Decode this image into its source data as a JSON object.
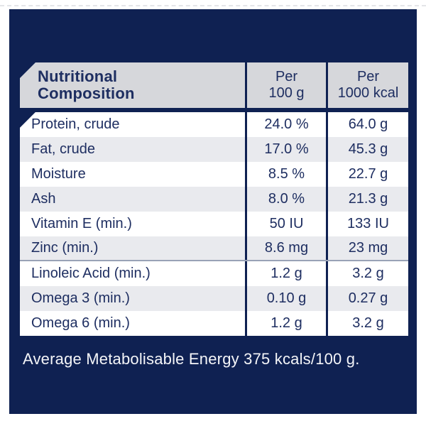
{
  "colors": {
    "page_background": "#ffffff",
    "panel_navy": "#0f2152",
    "header_gray": "#d6d7db",
    "row_stripe_gray": "#e9eaee",
    "text_navy": "#1e2e61",
    "separator_blue_gray": "#99a2b6",
    "footer_text": "#f4f5f8"
  },
  "table": {
    "header": {
      "col1_line1": "Nutritional",
      "col1_line2": "Composition",
      "col2_line1": "Per",
      "col2_line2": "100 g",
      "col3_line1": "Per",
      "col3_line2": "1000 kcal"
    },
    "rows": [
      {
        "label": "Protein, crude",
        "per_100g": "24.0 %",
        "per_1000kcal": "64.0 g"
      },
      {
        "label": "Fat, crude",
        "per_100g": "17.0 %",
        "per_1000kcal": "45.3 g"
      },
      {
        "label": "Moisture",
        "per_100g": "8.5 %",
        "per_1000kcal": "22.7 g"
      },
      {
        "label": "Ash",
        "per_100g": "8.0 %",
        "per_1000kcal": "21.3 g"
      },
      {
        "label": "Vitamin E (min.)",
        "per_100g": "50 IU",
        "per_1000kcal": "133 IU"
      },
      {
        "label": "Zinc (min.)",
        "per_100g": "8.6 mg",
        "per_1000kcal": "23 mg"
      },
      {
        "label": "Linoleic Acid (min.)",
        "per_100g": "1.2 g",
        "per_1000kcal": "3.2 g"
      },
      {
        "label": "Omega 3 (min.)",
        "per_100g": "0.10 g",
        "per_1000kcal": "0.27 g"
      },
      {
        "label": "Omega 6 (min.)",
        "per_100g": "1.2 g",
        "per_1000kcal": "3.2 g"
      }
    ],
    "footer": "Average Metabolisable Energy 375 kcals/100 g."
  }
}
